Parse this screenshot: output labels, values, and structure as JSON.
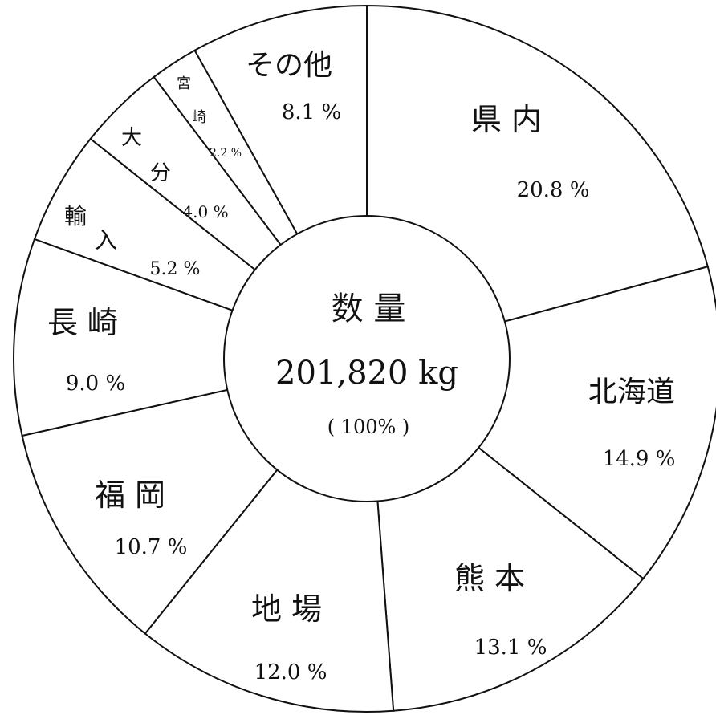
{
  "chart_data": {
    "type": "pie",
    "center": {
      "title": "数 量",
      "total": "201,820 kg",
      "percent": "( 100% )"
    },
    "slices": [
      {
        "label": "県 内",
        "value": 20.8,
        "percent_label": "20.8 %"
      },
      {
        "label": "北海道",
        "value": 14.9,
        "percent_label": "14.9 %"
      },
      {
        "label": "熊 本",
        "value": 13.1,
        "percent_label": "13.1 %"
      },
      {
        "label": "地 場",
        "value": 12.0,
        "percent_label": "12.0 %"
      },
      {
        "label": "福 岡",
        "value": 10.7,
        "percent_label": "10.7 %"
      },
      {
        "label": "長 崎",
        "value": 9.0,
        "percent_label": "9.0 %"
      },
      {
        "label": "輸 入",
        "value": 5.2,
        "percent_label": "5.2 %"
      },
      {
        "label": "大 分",
        "value": 4.0,
        "percent_label": "4.0 %"
      },
      {
        "label": "宮 崎",
        "value": 2.2,
        "percent_label": "2.2 %"
      },
      {
        "label": "その他",
        "value": 8.1,
        "percent_label": "8.1 %"
      }
    ],
    "start": "top",
    "direction": "clockwise",
    "colors": {
      "fill": "#ffffff",
      "stroke": "#111111",
      "text": "#111111"
    }
  }
}
